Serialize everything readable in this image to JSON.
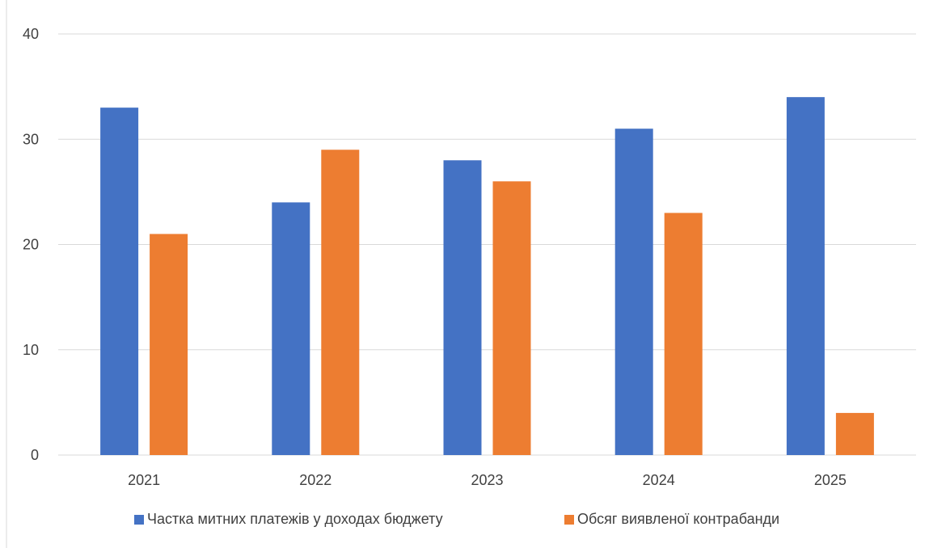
{
  "chart_data": {
    "type": "bar",
    "categories": [
      "2021",
      "2022",
      "2023",
      "2024",
      "2025"
    ],
    "series": [
      {
        "name": "Частка митних платежів у доходах бюджету",
        "color": "#4472C4",
        "values": [
          33,
          24,
          28,
          31,
          34
        ]
      },
      {
        "name": "Обсяг виявленої контрабанди",
        "color": "#ED7D31",
        "values": [
          21,
          29,
          26,
          23,
          4
        ]
      }
    ],
    "ylim": [
      0,
      40
    ],
    "yticks": [
      "0",
      "10",
      "20",
      "30",
      "40"
    ],
    "grid": true,
    "legend_position": "bottom"
  }
}
